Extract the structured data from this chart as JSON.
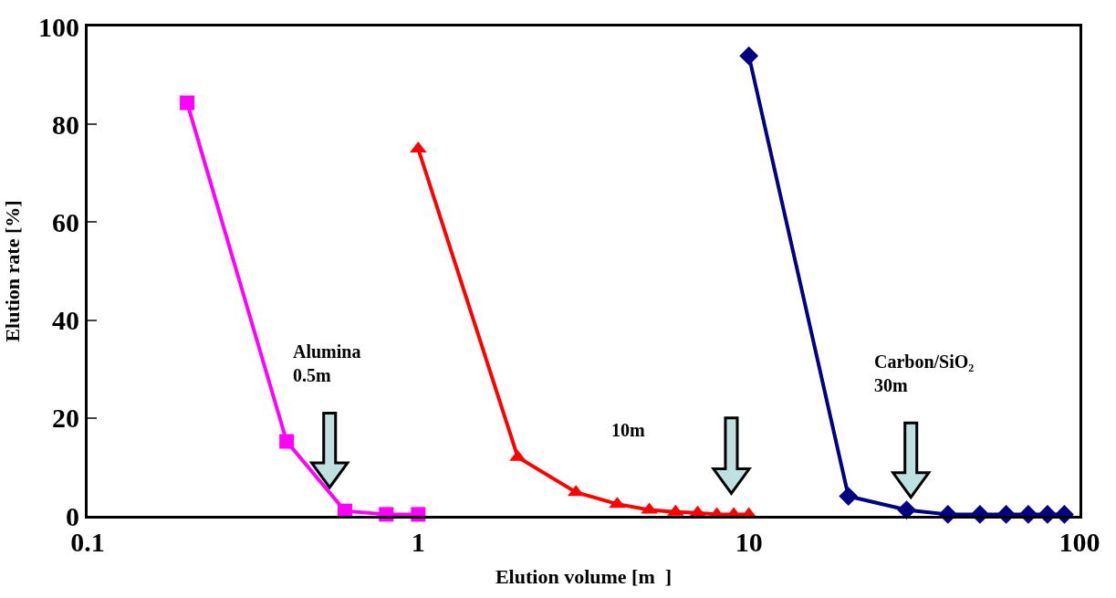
{
  "chart_data": {
    "type": "line",
    "xlabel": "Elution volume [m  ]",
    "ylabel": "Elution rate [%]",
    "log": "x",
    "xlim": [
      0.1,
      100
    ],
    "xticks": [
      0.1,
      1,
      10,
      100
    ],
    "ylim": [
      0,
      100
    ],
    "yticks": [
      0,
      20,
      40,
      60,
      80,
      100
    ],
    "series": [
      {
        "color": "#ff00ff",
        "marker": "square",
        "x": [
          0.2,
          0.4,
          0.6,
          0.8,
          1.0
        ],
        "values": [
          84.4,
          15.2,
          1,
          0.3,
          0.3
        ]
      },
      {
        "color": "#ff0000",
        "marker": "triangle",
        "x": [
          1,
          2,
          3,
          4,
          5,
          6,
          7,
          8,
          9,
          10
        ],
        "values": [
          75,
          12,
          4.8,
          2.4,
          1.2,
          0.8,
          0.6,
          0.3,
          0.3,
          0.3
        ]
      },
      {
        "color": "#000080",
        "marker": "diamond",
        "x": [
          10,
          20,
          30,
          40,
          50,
          60,
          70,
          80,
          90
        ],
        "values": [
          94,
          4,
          1.2,
          0.3,
          0.3,
          0.3,
          0.3,
          0.3,
          0.3
        ]
      }
    ],
    "annotations": [
      "Alumina\n0.5m",
      "10m",
      "Carbon/SiO₂\n30m"
    ]
  }
}
